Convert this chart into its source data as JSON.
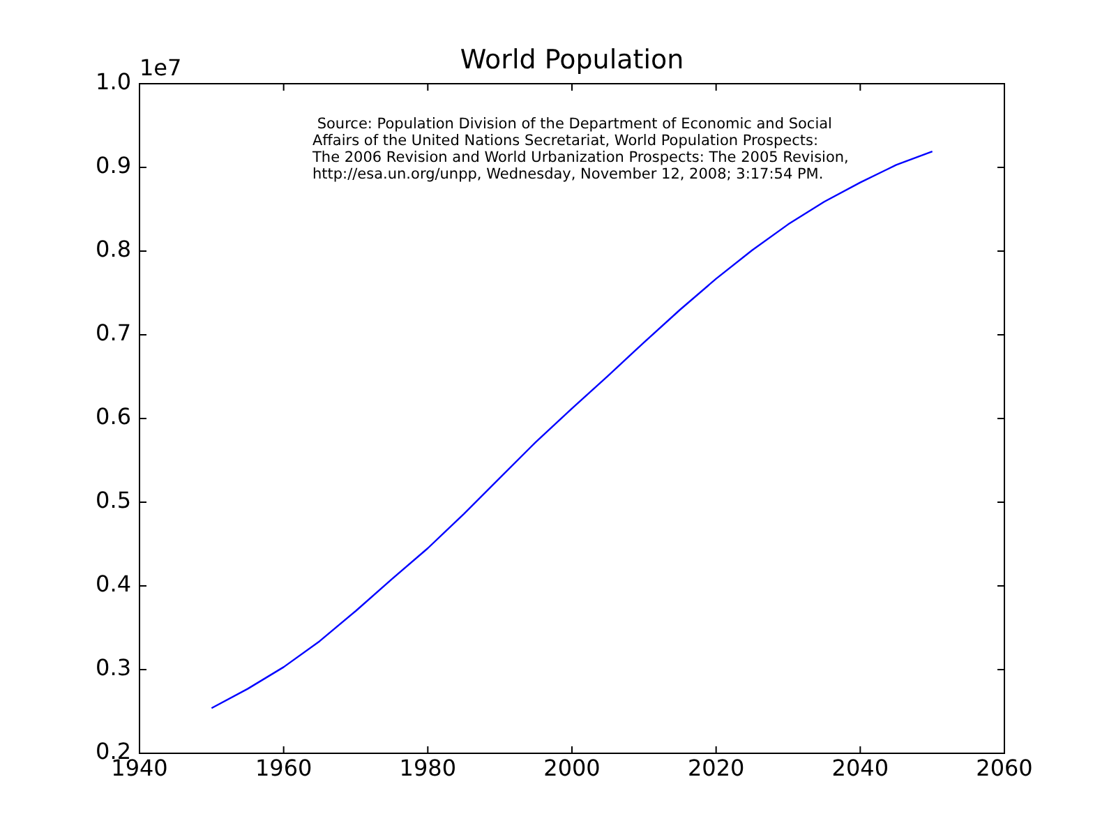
{
  "chart_data": {
    "type": "line",
    "title": "World Population",
    "x": [
      1950,
      1955,
      1960,
      1965,
      1970,
      1975,
      1980,
      1985,
      1990,
      1995,
      2000,
      2005,
      2010,
      2015,
      2020,
      2025,
      2030,
      2035,
      2040,
      2045,
      2050
    ],
    "series": [
      {
        "color": "#0000ff",
        "values": [
          0.254,
          0.277,
          0.303,
          0.334,
          0.37,
          0.408,
          0.445,
          0.486,
          0.529,
          0.572,
          0.612,
          0.651,
          0.691,
          0.73,
          0.767,
          0.801,
          0.832,
          0.859,
          0.882,
          0.903,
          0.919
        ]
      }
    ],
    "xlim": [
      1940,
      2060
    ],
    "xticks": [
      1940,
      1960,
      1980,
      2000,
      2020,
      2040,
      2060
    ],
    "ylim": [
      0.2,
      1.0
    ],
    "yticks": [
      0.2,
      0.3,
      0.4,
      0.5,
      0.6,
      0.7,
      0.8,
      0.9,
      {
        "value": 1,
        "label": "1.0"
      }
    ],
    "annotations": [
      "1e7",
      " Source: Population Division of the Department of Economic and Social\nAffairs of the United Nations Secretariat, World Population Prospects:\nThe 2006 Revision and World Urbanization Prospects: The 2005 Revision,\nhttp://esa.un.org/unpp, Wednesday, November 12, 2008; 3:17:54 PM."
    ],
    "grid": false,
    "legend": false,
    "marker": "none",
    "line_style": "solid"
  }
}
